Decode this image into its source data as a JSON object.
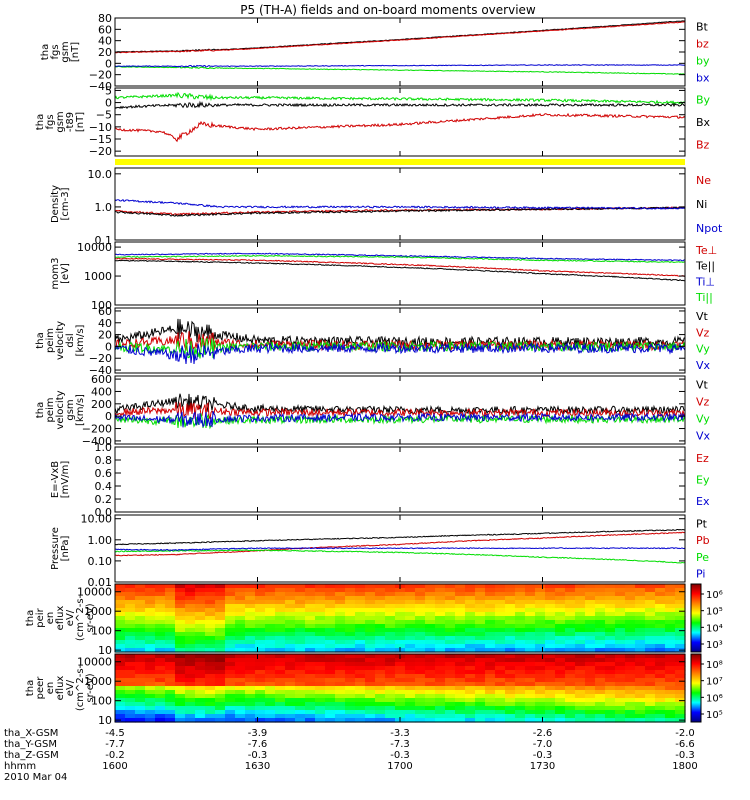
{
  "title": "P5 (TH-A) fields and on-board moments overview",
  "x_labels": {
    "rows": [
      {
        "name": "tha_X-GSM",
        "values": [
          "-4.5",
          "-3.9",
          "-3.3",
          "-2.6",
          "-2.0"
        ]
      },
      {
        "name": "tha_Y-GSM",
        "values": [
          "-7.7",
          "-7.6",
          "-7.3",
          "-7.0",
          "-6.6"
        ]
      },
      {
        "name": "tha_Z-GSM",
        "values": [
          "-0.2",
          "-0.3",
          "-0.3",
          "-0.3",
          "-0.3"
        ]
      },
      {
        "name": "hhmm",
        "values": [
          "1600",
          "1630",
          "1700",
          "1730",
          "1800"
        ]
      }
    ],
    "date": "2010 Mar 04"
  },
  "colors": {
    "black": "#000000",
    "red": "#d00000",
    "green": "#00dd00",
    "blue": "#0000d0",
    "yellow": "#ffff00"
  },
  "chart_data": [
    {
      "type": "line",
      "ylabel": [
        "tha",
        "fgs",
        "gsm",
        "[nT]"
      ],
      "ylim": [
        -40,
        80
      ],
      "yticks": [
        "80",
        "60",
        "40",
        "20",
        "0",
        "−20",
        "−40"
      ],
      "legend": [
        "Bt",
        "bz",
        "by",
        "bx"
      ],
      "series": [
        {
          "name": "Bt",
          "color": "black",
          "x": [
            "1600",
            "1613",
            "1625",
            "1700",
            "1730",
            "1800"
          ],
          "y": [
            20,
            22,
            25,
            42,
            58,
            75
          ]
        },
        {
          "name": "bz",
          "color": "red",
          "x": [
            "1600",
            "1613",
            "1625",
            "1700",
            "1730",
            "1800"
          ],
          "y": [
            19,
            21,
            24,
            41,
            57,
            73
          ]
        },
        {
          "name": "by",
          "color": "green",
          "x": [
            "1600",
            "1630",
            "1700",
            "1730",
            "1800"
          ],
          "y": [
            -6,
            -9,
            -12,
            -15,
            -19
          ]
        },
        {
          "name": "bx",
          "color": "blue",
          "x": [
            "1600",
            "1630",
            "1700",
            "1730",
            "1800"
          ],
          "y": [
            -5,
            -5,
            -4,
            -3,
            -3
          ]
        }
      ]
    },
    {
      "type": "line",
      "ylabel": [
        "tha",
        "fgs",
        "gsm",
        "-t89",
        "[nT]"
      ],
      "ylim": [
        -22,
        6
      ],
      "yticks": [
        "5",
        "0",
        "−5",
        "−10",
        "−15",
        "−20"
      ],
      "legend": [
        "By",
        "Bx",
        "Bz"
      ],
      "series": [
        {
          "name": "By",
          "color": "green",
          "x": [
            "1600",
            "1613",
            "1620",
            "1630",
            "1700",
            "1730",
            "1800"
          ],
          "y": [
            2,
            3,
            2,
            2,
            1.5,
            1,
            0
          ]
        },
        {
          "name": "Bx",
          "color": "black",
          "x": [
            "1600",
            "1613",
            "1630",
            "1700",
            "1730",
            "1800"
          ],
          "y": [
            -2,
            -1,
            -1,
            -1,
            -1,
            -1
          ]
        },
        {
          "name": "Bz",
          "color": "red",
          "x": [
            "1600",
            "1610",
            "1613",
            "1618",
            "1630",
            "1700",
            "1730",
            "1800"
          ],
          "y": [
            -11,
            -12,
            -15,
            -9,
            -11,
            -9,
            -5,
            -6
          ]
        }
      ]
    },
    {
      "type": "line",
      "ylabel": [
        "Density",
        "[cm-3]"
      ],
      "ylim": [
        0.1,
        15
      ],
      "log": true,
      "yticks": [
        "10.0",
        "1.0",
        "0.1"
      ],
      "legend": [
        "Ne",
        "Ni",
        "Npot"
      ],
      "series": [
        {
          "name": "Ne",
          "color": "red",
          "x": [
            "1600",
            "1613",
            "1630",
            "1700",
            "1730",
            "1800"
          ],
          "y": [
            0.75,
            0.6,
            0.7,
            0.8,
            0.85,
            0.95
          ]
        },
        {
          "name": "Ni",
          "color": "black",
          "x": [
            "1600",
            "1613",
            "1630",
            "1700",
            "1730",
            "1800"
          ],
          "y": [
            0.7,
            0.55,
            0.65,
            0.75,
            0.85,
            0.95
          ]
        },
        {
          "name": "Npot",
          "color": "blue",
          "x": [
            "1600",
            "1613",
            "1622",
            "1700",
            "1730",
            "1800"
          ],
          "y": [
            1.6,
            1.3,
            1.0,
            1.0,
            0.95,
            0.9
          ]
        }
      ]
    },
    {
      "type": "line",
      "ylabel": [
        "mom3",
        "[eV]"
      ],
      "ylim": [
        100,
        15000
      ],
      "log": true,
      "yticks": [
        "10000",
        "1000",
        "100"
      ],
      "legend": [
        "Te⊥",
        "Te||",
        "Ti⊥",
        "Ti||"
      ],
      "series": [
        {
          "name": "Te⊥",
          "color": "red",
          "x": [
            "1600",
            "1630",
            "1700",
            "1730",
            "1800"
          ],
          "y": [
            4000,
            3500,
            2500,
            1500,
            1000
          ]
        },
        {
          "name": "Te||",
          "color": "black",
          "x": [
            "1600",
            "1630",
            "1700",
            "1730",
            "1800"
          ],
          "y": [
            3500,
            2800,
            2000,
            1200,
            700
          ]
        },
        {
          "name": "Ti⊥",
          "color": "blue",
          "x": [
            "1600",
            "1630",
            "1700",
            "1730",
            "1800"
          ],
          "y": [
            5500,
            6000,
            5000,
            4000,
            3500
          ]
        },
        {
          "name": "Ti||",
          "color": "green",
          "x": [
            "1600",
            "1630",
            "1700",
            "1730",
            "1800"
          ],
          "y": [
            4500,
            5000,
            4500,
            3500,
            3000
          ]
        }
      ]
    },
    {
      "type": "line",
      "ylabel": [
        "tha",
        "peim",
        "velocity",
        "dsl",
        "[km/s]"
      ],
      "ylim": [
        -45,
        65
      ],
      "yticks": [
        "60",
        "40",
        "20",
        "0",
        "−20",
        "−40"
      ],
      "legend": [
        "Vt",
        "Vz",
        "Vy",
        "Vx"
      ],
      "series": [
        {
          "name": "Vt",
          "color": "black",
          "x": [
            "1600",
            "1613",
            "1630",
            "1700",
            "1800"
          ],
          "y": [
            10,
            30,
            10,
            8,
            8
          ]
        },
        {
          "name": "Vz",
          "color": "red",
          "x": [
            "1600",
            "1613",
            "1630",
            "1700",
            "1800"
          ],
          "y": [
            3,
            10,
            3,
            2,
            2
          ]
        },
        {
          "name": "Vy",
          "color": "green",
          "x": [
            "1600",
            "1613",
            "1630",
            "1700",
            "1800"
          ],
          "y": [
            0,
            -5,
            0,
            0,
            0
          ]
        },
        {
          "name": "Vx",
          "color": "blue",
          "x": [
            "1600",
            "1613",
            "1630",
            "1700",
            "1800"
          ],
          "y": [
            -3,
            -15,
            -3,
            -3,
            -3
          ]
        }
      ]
    },
    {
      "type": "line",
      "ylabel": [
        "tha",
        "peim",
        "velocity",
        "gsm",
        "[km/s]"
      ],
      "ylim": [
        -450,
        650
      ],
      "yticks": [
        "600",
        "400",
        "200",
        "0",
        "−200",
        "−400"
      ],
      "legend": [
        "Vt",
        "Vz",
        "Vy",
        "Vx"
      ],
      "series": [
        {
          "name": "Vt",
          "color": "black",
          "x": [
            "1600",
            "1613",
            "1630",
            "1700",
            "1800"
          ],
          "y": [
            100,
            250,
            120,
            100,
            100
          ]
        },
        {
          "name": "Vz",
          "color": "red",
          "x": [
            "1600",
            "1613",
            "1630",
            "1700",
            "1800"
          ],
          "y": [
            60,
            100,
            60,
            60,
            50
          ]
        },
        {
          "name": "Vy",
          "color": "green",
          "x": [
            "1600",
            "1613",
            "1630",
            "1700",
            "1800"
          ],
          "y": [
            -60,
            -80,
            -60,
            -50,
            -50
          ]
        },
        {
          "name": "Vx",
          "color": "blue",
          "x": [
            "1600",
            "1613",
            "1630",
            "1700",
            "1800"
          ],
          "y": [
            -30,
            -60,
            -30,
            -20,
            -20
          ]
        }
      ]
    },
    {
      "type": "line",
      "ylabel": [
        "E=-VxB",
        "[mV/m]"
      ],
      "ylim": [
        0,
        1
      ],
      "yticks": [
        "1.0",
        "0.8",
        "0.6",
        "0.4",
        "0.2",
        "0.0"
      ],
      "legend": [
        "Ez",
        "Ey",
        "Ex"
      ],
      "series": []
    },
    {
      "type": "line",
      "ylabel": [
        "Pressure",
        "[nPa]"
      ],
      "ylim": [
        0.01,
        15
      ],
      "log": true,
      "yticks": [
        "10.00",
        "1.00",
        "0.10",
        "0.01"
      ],
      "legend": [
        "Pt",
        "Pb",
        "Pe",
        "Pi"
      ],
      "series": [
        {
          "name": "Pt",
          "color": "black",
          "x": [
            "1600",
            "1613",
            "1630",
            "1700",
            "1730",
            "1800"
          ],
          "y": [
            0.6,
            0.7,
            0.9,
            1.3,
            2.0,
            3.0
          ]
        },
        {
          "name": "Pb",
          "color": "red",
          "x": [
            "1600",
            "1613",
            "1630",
            "1700",
            "1730",
            "1800"
          ],
          "y": [
            0.18,
            0.2,
            0.3,
            0.6,
            1.2,
            2.2
          ]
        },
        {
          "name": "Pe",
          "color": "green",
          "x": [
            "1600",
            "1613",
            "1630",
            "1700",
            "1730",
            "1800"
          ],
          "y": [
            0.28,
            0.3,
            0.32,
            0.25,
            0.15,
            0.08
          ]
        },
        {
          "name": "Pi",
          "color": "blue",
          "x": [
            "1600",
            "1613",
            "1630",
            "1700",
            "1730",
            "1800"
          ],
          "y": [
            0.35,
            0.33,
            0.4,
            0.4,
            0.4,
            0.4
          ]
        }
      ]
    },
    {
      "type": "heatmap",
      "ylabel": [
        "tha",
        "peir",
        "en",
        "eflux",
        "eV/",
        "(cm^2-s-",
        "sr-eV)"
      ],
      "ylim": [
        8,
        25000
      ],
      "log": true,
      "yticks": [
        "10000",
        "1000",
        "100",
        "10"
      ],
      "colorbar_ticks": [
        "10⁶",
        "10⁵",
        "10⁴",
        "10³"
      ]
    },
    {
      "type": "heatmap",
      "ylabel": [
        "tha",
        "peer",
        "en",
        "eflux",
        "eV/",
        "(cm^2-s-",
        "sr-eV)"
      ],
      "ylim": [
        8,
        25000
      ],
      "log": true,
      "yticks": [
        "10000",
        "1000",
        "100",
        "10"
      ],
      "colorbar_ticks": [
        "10⁸",
        "10⁷",
        "10⁶",
        "10⁵"
      ]
    }
  ]
}
